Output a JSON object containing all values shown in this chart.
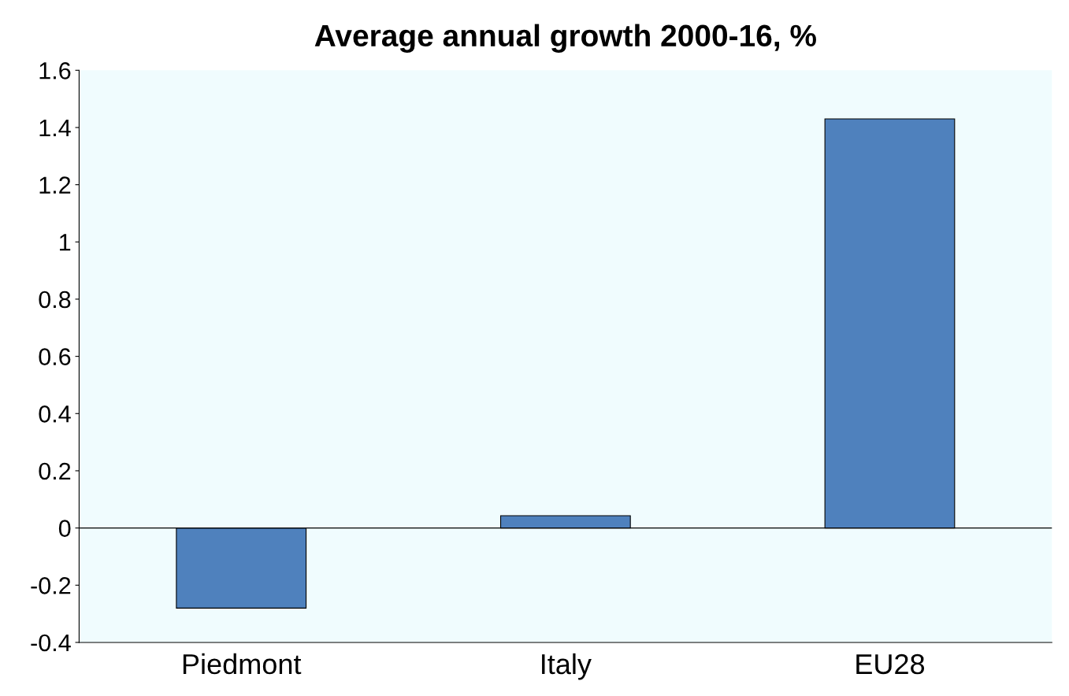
{
  "chart_data": {
    "type": "bar",
    "title": "Average annual growth 2000-16, %",
    "categories": [
      "Piedmont",
      "Italy",
      "EU28"
    ],
    "values": [
      -0.28,
      0.043,
      1.43
    ],
    "color": "#4f81bd",
    "ylim": [
      -0.4,
      1.6
    ],
    "yticks": [
      -0.4,
      -0.2,
      0,
      0.2,
      0.4,
      0.6,
      0.8,
      1,
      1.2,
      1.4,
      1.6
    ],
    "ref_lines": [
      {
        "axis": "y",
        "value": 0,
        "color": "#000000"
      }
    ]
  }
}
